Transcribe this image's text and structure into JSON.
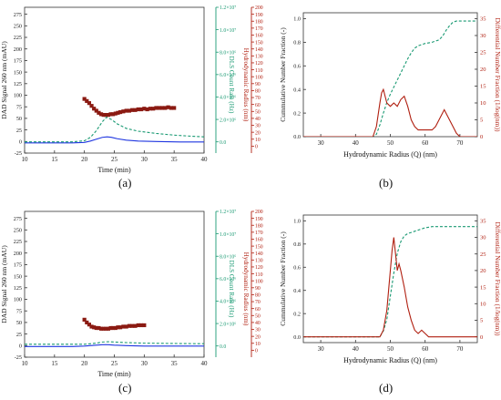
{
  "colors": {
    "blue": "#1f36e0",
    "green": "#1a9a73",
    "red": "#b01f10",
    "marker": "#8b1a12",
    "axis": "#333333"
  },
  "panel_labels": [
    "(a)",
    "(b)",
    "(c)",
    "(d)"
  ],
  "chart_data": [
    {
      "id": "a",
      "type": "line",
      "xlabel": "Time (min)",
      "xlim": [
        10,
        40
      ],
      "xticks": [
        10,
        15,
        20,
        25,
        30,
        35,
        40
      ],
      "y_left": {
        "label": "DAD Signal 260 nm (mAU)",
        "ylim": [
          -25,
          290
        ],
        "ticks": [
          -25,
          0,
          25,
          50,
          75,
          100,
          125,
          150,
          175,
          200,
          225,
          250,
          275
        ]
      },
      "y_mid": {
        "label": "DLS Count Rate (Hz)",
        "ylim": [
          -1000000,
          12000000
        ],
        "ticks": [
          0,
          2000000,
          4000000,
          6000000,
          8000000,
          10000000,
          12000000
        ],
        "tick_labels": [
          "0.0",
          "2.0×10⁶",
          "4.0×10⁶",
          "6.0×10⁶",
          "8.0×10⁶",
          "1.0×10⁷",
          "1.2×10⁷"
        ]
      },
      "y_right": {
        "label": "Hydrodynamic Radius (nm)",
        "ylim": [
          -10,
          200
        ],
        "ticks": [
          0,
          10,
          20,
          30,
          40,
          50,
          60,
          70,
          80,
          90,
          100,
          110,
          120,
          130,
          140,
          150,
          160,
          170,
          180,
          190,
          200
        ]
      },
      "series": [
        {
          "axis": "left",
          "style": "solid",
          "color": "blue",
          "x": [
            10,
            18,
            20,
            21,
            22,
            23,
            23.8,
            24.5,
            25.5,
            27,
            29,
            32,
            36,
            40
          ],
          "y": [
            -3,
            -3,
            -2,
            1,
            5,
            9,
            10,
            9,
            6,
            3,
            1,
            0,
            -1,
            -1
          ]
        },
        {
          "axis": "mid",
          "style": "dashed",
          "color": "green",
          "x": [
            10,
            18,
            20,
            21,
            22,
            23,
            23.7,
            24.5,
            25.5,
            27,
            29,
            32,
            35,
            38,
            40
          ],
          "y": [
            0,
            0,
            100000,
            400000,
            1000000,
            1800000,
            2200000,
            2000000,
            1600000,
            1200000,
            950000,
            750000,
            600000,
            500000,
            450000
          ]
        },
        {
          "axis": "right",
          "style": "markers",
          "color": "marker",
          "x": [
            20,
            20.4,
            20.8,
            21.2,
            21.6,
            22,
            22.4,
            22.8,
            23.2,
            23.6,
            24,
            24.4,
            24.8,
            25.2,
            25.6,
            26,
            26.5,
            27,
            27.5,
            28,
            28.5,
            29,
            29.5,
            30,
            30.5,
            31,
            31.5,
            32,
            32.5,
            33,
            33.5,
            34,
            34.5,
            35
          ],
          "y": [
            68,
            65,
            62,
            58,
            54,
            51,
            48,
            46,
            45,
            45,
            45,
            46,
            46,
            47,
            48,
            49,
            50,
            51,
            51,
            52,
            52,
            53,
            53,
            54,
            53,
            54,
            54,
            55,
            55,
            55,
            55,
            56,
            55,
            55
          ]
        }
      ]
    },
    {
      "id": "b",
      "type": "line",
      "xlabel": "Hydrodynamic Radius (Q) (nm)",
      "xlim": [
        25,
        75
      ],
      "xticks": [
        30,
        40,
        50,
        60,
        70
      ],
      "y_left": {
        "label": "Cummulative Number Fraction (-)",
        "ylim": [
          0,
          1.05
        ],
        "ticks": [
          0.0,
          0.2,
          0.4,
          0.6,
          0.8,
          1.0
        ],
        "tick_labels": [
          "0.0",
          "0.2",
          "0.4",
          "0.6",
          "0.8",
          "1.0"
        ]
      },
      "y_right": {
        "label": "Differential Number Fraction (1/log(nm))",
        "ylim": [
          0,
          36.75
        ],
        "ticks": [
          0,
          5,
          10,
          15,
          20,
          25,
          30,
          35
        ]
      },
      "series": [
        {
          "axis": "left",
          "style": "dashed",
          "color": "green",
          "x": [
            25,
            45,
            46,
            47,
            48,
            49,
            50,
            51,
            52,
            53,
            54,
            55,
            56,
            57,
            58,
            59,
            60,
            62,
            64,
            65,
            66,
            67,
            68,
            69,
            70,
            72,
            75
          ],
          "y": [
            0,
            0,
            0.02,
            0.1,
            0.2,
            0.29,
            0.36,
            0.42,
            0.48,
            0.54,
            0.6,
            0.66,
            0.71,
            0.75,
            0.77,
            0.78,
            0.79,
            0.8,
            0.82,
            0.85,
            0.9,
            0.94,
            0.97,
            0.98,
            0.98,
            0.98,
            0.98
          ]
        },
        {
          "axis": "right",
          "style": "solid",
          "color": "red",
          "x": [
            25,
            45,
            46,
            47,
            47.5,
            48,
            48.5,
            49,
            50,
            51,
            52,
            53,
            54,
            55,
            56,
            57,
            58,
            59,
            60,
            61,
            62,
            63,
            64,
            65,
            65.5,
            66,
            67,
            68,
            69,
            70,
            75
          ],
          "y": [
            0,
            0,
            3,
            10,
            13,
            14,
            12,
            10,
            9,
            10,
            9,
            11,
            12,
            9,
            5,
            3,
            2,
            2,
            2,
            2,
            2,
            3,
            5,
            7,
            8,
            7,
            5,
            3,
            1,
            0,
            0
          ]
        }
      ]
    },
    {
      "id": "c",
      "type": "line",
      "xlabel": "Time (min)",
      "xlim": [
        10,
        40
      ],
      "xticks": [
        10,
        15,
        20,
        25,
        30,
        35,
        40
      ],
      "y_left": {
        "label": "DAD Signal 260 nm (mAU)",
        "ylim": [
          -25,
          290
        ],
        "ticks": [
          -25,
          0,
          25,
          50,
          75,
          100,
          125,
          150,
          175,
          200,
          225,
          250,
          275
        ]
      },
      "y_mid": {
        "label": "DLS Count Rate (Hz)",
        "ylim": [
          -1000000,
          12000000
        ],
        "ticks": [
          0,
          2000000,
          4000000,
          6000000,
          8000000,
          10000000,
          12000000
        ],
        "tick_labels": [
          "0.0",
          "2.0×10⁶",
          "4.0×10⁶",
          "6.0×10⁶",
          "8.0×10⁶",
          "1.0×10⁷",
          "1.2×10⁷"
        ]
      },
      "y_right": {
        "label": "Hydrodynamic Radius (nm)",
        "ylim": [
          -10,
          200
        ],
        "ticks": [
          0,
          10,
          20,
          30,
          40,
          50,
          60,
          70,
          80,
          90,
          100,
          110,
          120,
          130,
          140,
          150,
          160,
          170,
          180,
          190,
          200
        ]
      },
      "series": [
        {
          "axis": "left",
          "style": "solid",
          "color": "blue",
          "x": [
            10,
            18,
            20,
            22,
            23,
            24,
            25,
            27,
            30,
            35,
            40
          ],
          "y": [
            -2,
            -2,
            -1,
            1,
            2,
            2,
            1,
            0,
            -1,
            -1,
            -1
          ]
        },
        {
          "axis": "mid",
          "style": "dashed",
          "color": "green",
          "x": [
            10,
            20,
            22,
            23,
            24,
            25,
            27,
            30,
            35,
            40
          ],
          "y": [
            150000,
            150000,
            250000,
            350000,
            380000,
            350000,
            300000,
            250000,
            220000,
            200000
          ]
        },
        {
          "axis": "right",
          "style": "markers",
          "color": "marker",
          "x": [
            20,
            20.4,
            20.8,
            21.2,
            21.6,
            22,
            22.4,
            22.8,
            23.2,
            23.6,
            24,
            24.4,
            24.8,
            25.2,
            25.6,
            26,
            26.5,
            27,
            27.5,
            28,
            28.5,
            29,
            29.5,
            30
          ],
          "y": [
            44,
            40,
            37,
            34,
            33,
            32,
            32,
            31,
            31,
            31,
            31,
            32,
            32,
            32,
            33,
            33,
            34,
            34,
            35,
            35,
            35,
            36,
            36,
            36
          ]
        }
      ]
    },
    {
      "id": "d",
      "type": "line",
      "xlabel": "Hydrodynamic Radius (Q) (nm)",
      "xlim": [
        25,
        75
      ],
      "xticks": [
        30,
        40,
        50,
        60,
        70
      ],
      "y_left": {
        "label": "Cummulative Number Fraction (-)",
        "ylim": [
          -0.05,
          1.05
        ],
        "ticks": [
          0.0,
          0.2,
          0.4,
          0.6,
          0.8,
          1.0
        ],
        "tick_labels": [
          "0.0",
          "0.2",
          "0.4",
          "0.6",
          "0.8",
          "1.0"
        ]
      },
      "y_right": {
        "label": "Differential Number Fraction (1/log(nm))",
        "ylim": [
          -1.75,
          36.75
        ],
        "ticks": [
          0,
          5,
          10,
          15,
          20,
          25,
          30,
          35
        ]
      },
      "series": [
        {
          "axis": "left",
          "style": "dashed",
          "color": "green",
          "x": [
            25,
            47,
            48,
            49,
            50,
            51,
            52,
            53,
            54,
            55,
            56,
            57,
            58,
            60,
            62,
            65,
            70,
            75
          ],
          "y": [
            0,
            0,
            0.05,
            0.15,
            0.35,
            0.55,
            0.72,
            0.82,
            0.87,
            0.89,
            0.9,
            0.91,
            0.92,
            0.94,
            0.95,
            0.95,
            0.95,
            0.95
          ]
        },
        {
          "axis": "right",
          "style": "solid",
          "color": "red",
          "x": [
            25,
            47,
            48,
            49,
            49.5,
            50,
            50.5,
            51,
            51.5,
            52,
            52.5,
            53,
            54,
            55,
            56,
            57,
            58,
            59,
            60,
            61,
            62,
            75
          ],
          "y": [
            0,
            0,
            2,
            8,
            14,
            20,
            26,
            30,
            25,
            20,
            22,
            20,
            15,
            9,
            5,
            2,
            1,
            2,
            1,
            0,
            0,
            0
          ]
        }
      ]
    }
  ]
}
